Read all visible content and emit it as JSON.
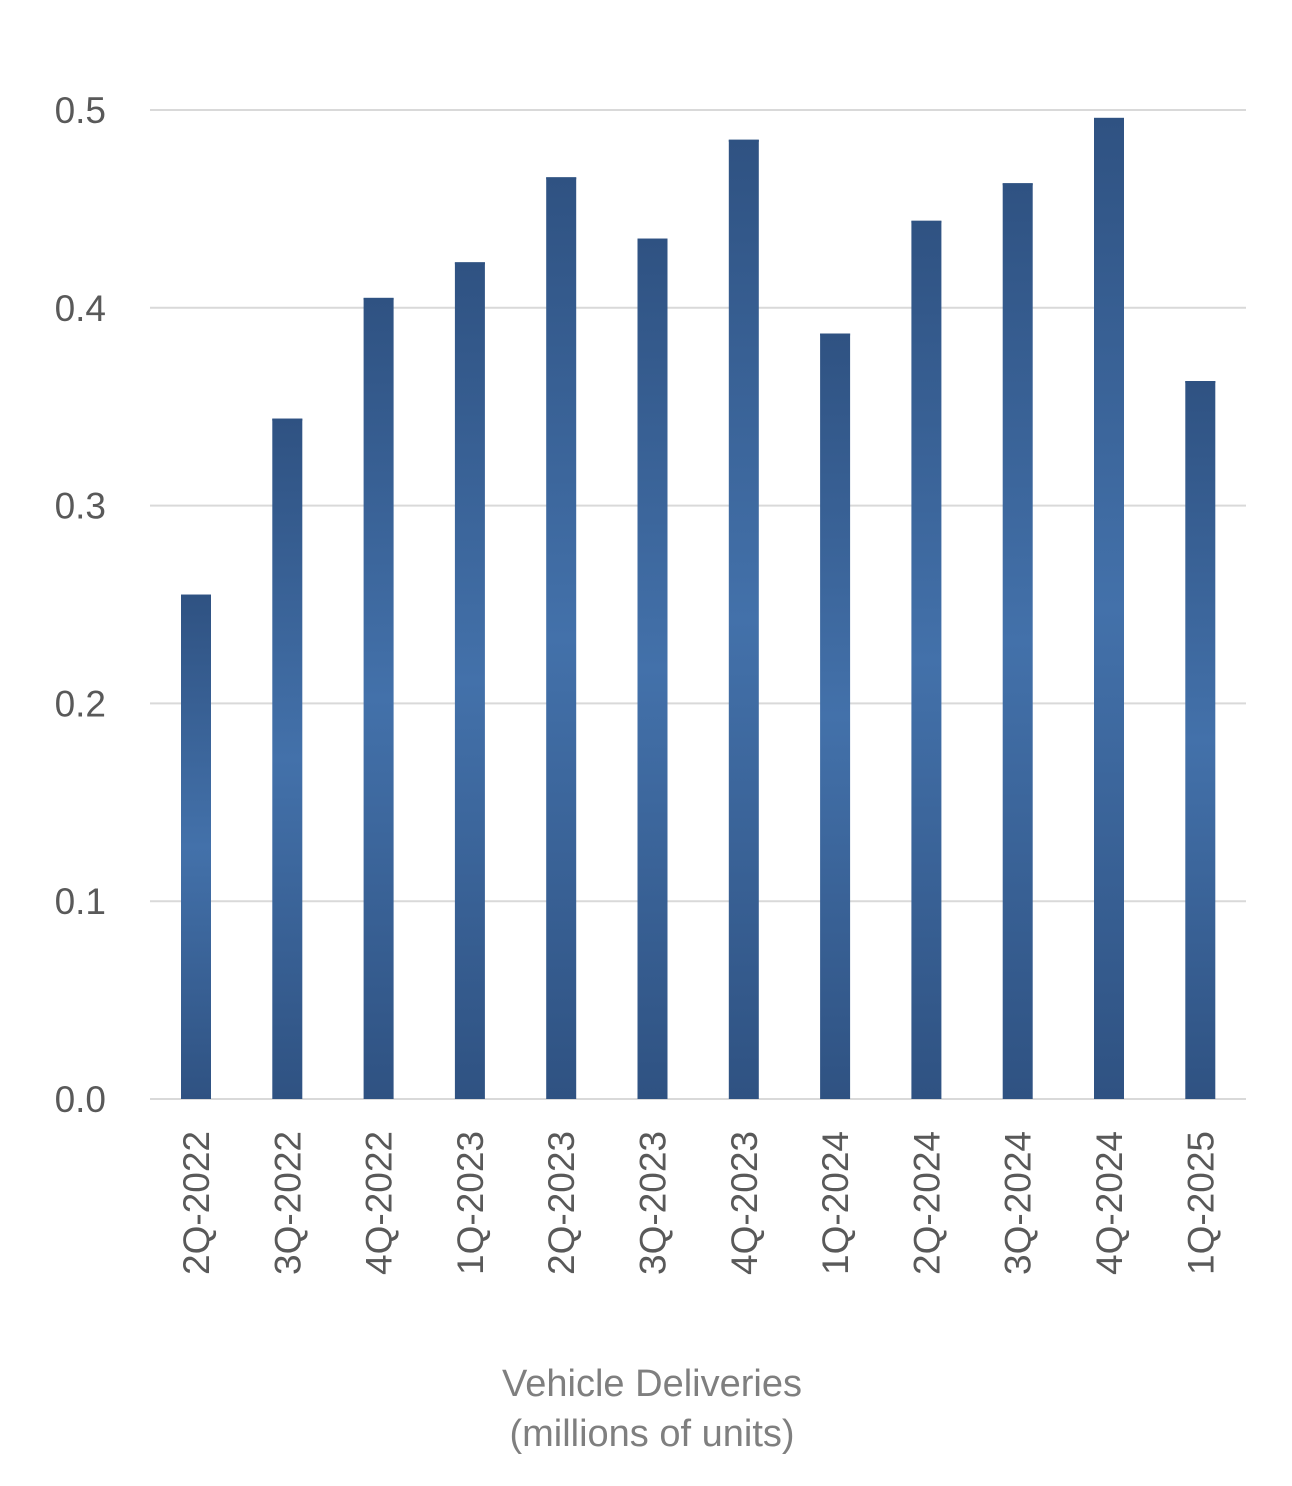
{
  "chart_data": {
    "type": "bar",
    "categories": [
      "2Q-2022",
      "3Q-2022",
      "4Q-2022",
      "1Q-2023",
      "2Q-2023",
      "3Q-2023",
      "4Q-2023",
      "1Q-2024",
      "2Q-2024",
      "3Q-2024",
      "4Q-2024",
      "1Q-2025"
    ],
    "series": [
      {
        "values": [
          0.255,
          0.344,
          0.405,
          0.423,
          0.466,
          0.435,
          0.485,
          0.387,
          0.444,
          0.463,
          0.496,
          0.363
        ]
      }
    ],
    "title": "",
    "xlabel": [
      "Vehicle Deliveries",
      "(millions of units)"
    ],
    "ylabel": "",
    "ylim": [
      0,
      0.5
    ],
    "yticks": [
      "0.0",
      "0.1",
      "0.2",
      "0.3",
      "0.4",
      "0.5"
    ],
    "grid": true,
    "legend": "none",
    "colors": {
      "bar_edge": "#2f5282",
      "bar_mid": "#4371aa",
      "grid": "#d9d9d9",
      "tick_text": "#595959",
      "caption_text": "#7f7f7f"
    }
  }
}
